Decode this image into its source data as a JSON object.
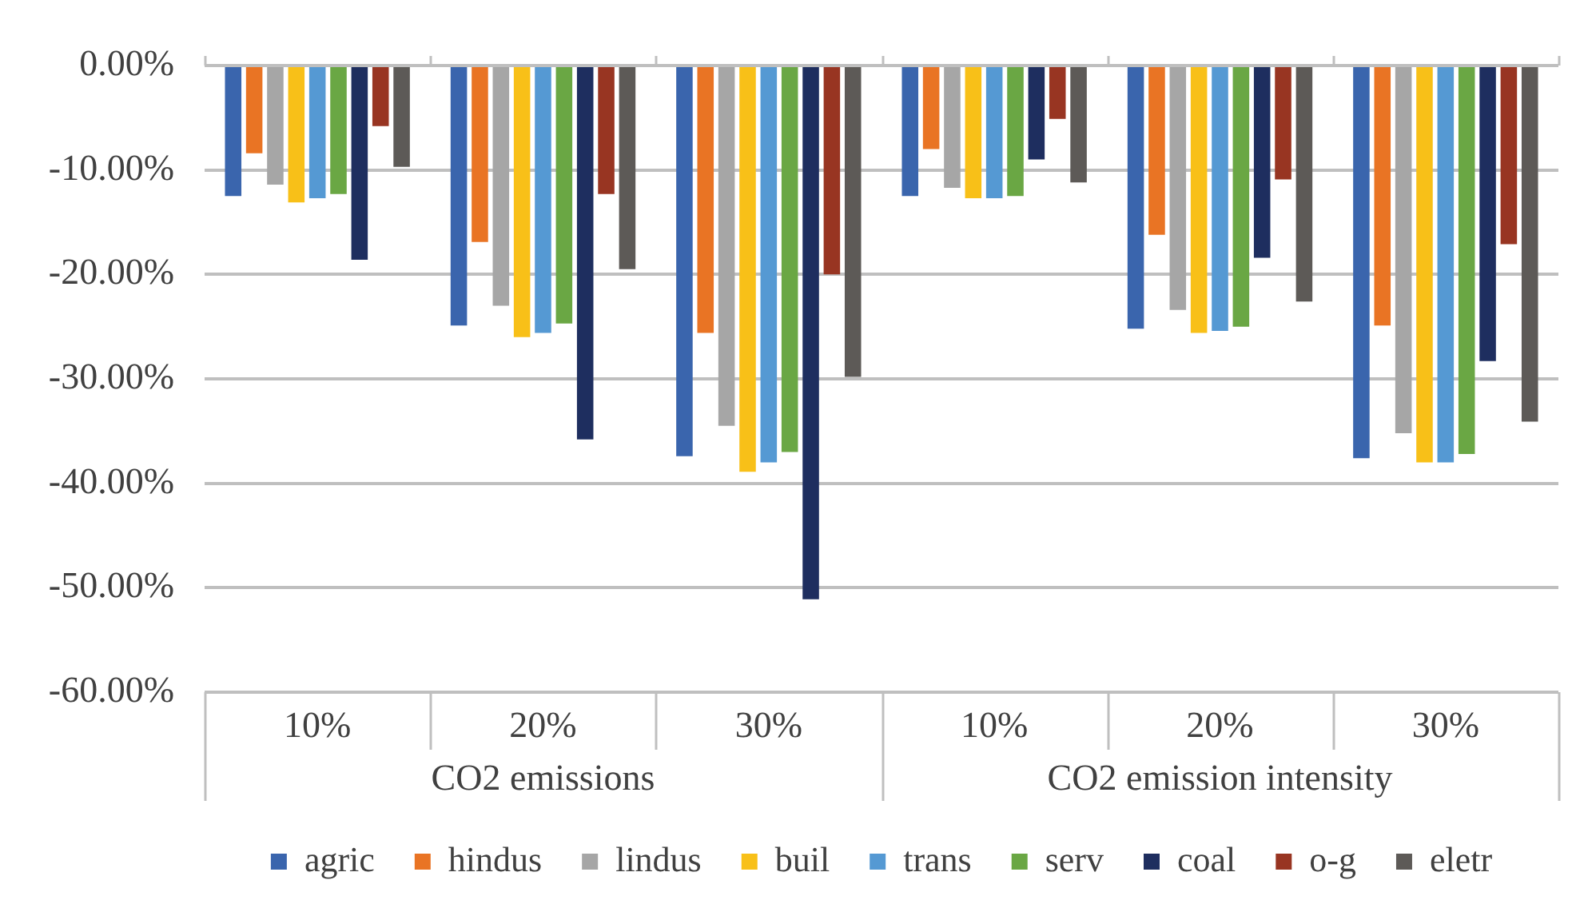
{
  "chart_data": {
    "type": "bar",
    "categories": [
      "10%",
      "20%",
      "30%",
      "10%",
      "20%",
      "30%"
    ],
    "annotations": [
      "CO2 emissions",
      "CO2 emission intensity"
    ],
    "series": [
      {
        "name": "agric",
        "color": "#3a65ad",
        "values": [
          -12.5,
          -24.9,
          -37.4,
          -12.5,
          -25.2,
          -37.6
        ]
      },
      {
        "name": "hindus",
        "color": "#e97424",
        "values": [
          -8.4,
          -16.9,
          -25.6,
          -8.0,
          -16.2,
          -24.9
        ]
      },
      {
        "name": "lindus",
        "color": "#a6a6a6",
        "values": [
          -11.4,
          -23.0,
          -34.5,
          -11.7,
          -23.4,
          -35.2
        ]
      },
      {
        "name": "buil",
        "color": "#f8c018",
        "values": [
          -13.1,
          -26.0,
          -38.9,
          -12.7,
          -25.6,
          -38.0
        ]
      },
      {
        "name": "trans",
        "color": "#5599d3",
        "values": [
          -12.7,
          -25.6,
          -38.0,
          -12.7,
          -25.4,
          -38.0
        ]
      },
      {
        "name": "serv",
        "color": "#6aa744",
        "values": [
          -12.3,
          -24.7,
          -37.0,
          -12.5,
          -25.0,
          -37.2
        ]
      },
      {
        "name": "coal",
        "color": "#1e2e5f",
        "values": [
          -18.6,
          -35.8,
          -51.1,
          -9.0,
          -18.4,
          -28.3
        ]
      },
      {
        "name": "o-g",
        "color": "#983522",
        "values": [
          -5.8,
          -12.3,
          -20.0,
          -5.1,
          -10.9,
          -17.1
        ]
      },
      {
        "name": "eletr",
        "color": "#5d5a57",
        "values": [
          -9.7,
          -19.5,
          -29.8,
          -11.2,
          -22.6,
          -34.1
        ]
      }
    ],
    "ylim": [
      -60,
      0
    ],
    "yticks": [
      {
        "value": -60,
        "label": "-60.00%"
      },
      {
        "value": -50,
        "label": "-50.00%"
      },
      {
        "value": -40,
        "label": "-40.00%"
      },
      {
        "value": -30,
        "label": "-30.00%"
      },
      {
        "value": -20,
        "label": "-20.00%"
      },
      {
        "value": -10,
        "label": "-10.00%"
      },
      {
        "value": 0,
        "label": "0.00%"
      }
    ],
    "grid": "y",
    "legend": "bottom"
  }
}
